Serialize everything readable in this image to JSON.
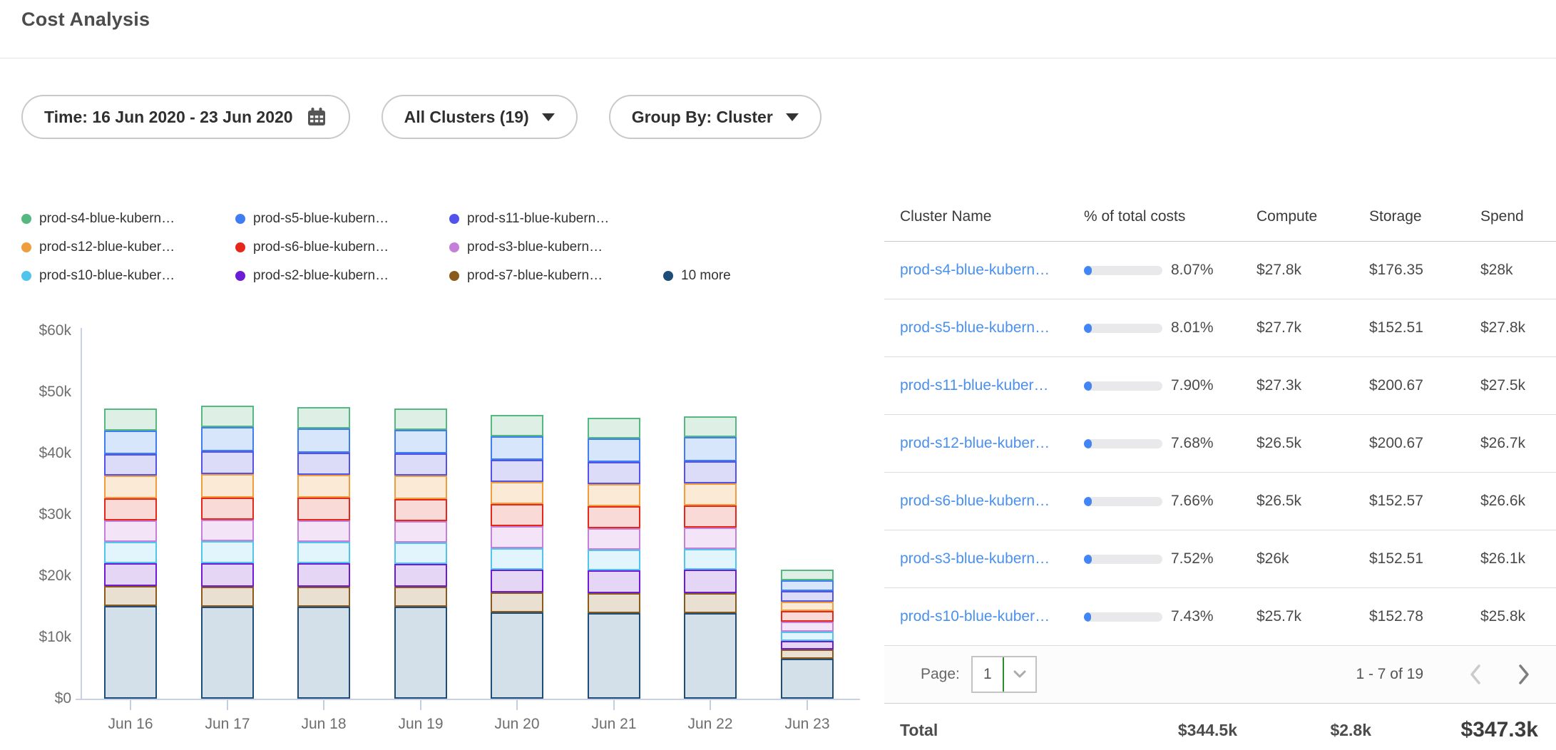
{
  "page": {
    "title": "Cost Analysis"
  },
  "filters": {
    "time": {
      "label": "Time: 16 Jun 2020 - 23 Jun 2020"
    },
    "clusters": {
      "label": "All Clusters (19)"
    },
    "group_by": {
      "label": "Group By: Cluster"
    }
  },
  "legend": {
    "items": [
      {
        "label": "prod-s4-blue-kubern…",
        "color": "#54b880"
      },
      {
        "label": "prod-s5-blue-kubern…",
        "color": "#3e7ef2"
      },
      {
        "label": "prod-s11-blue-kubern…",
        "color": "#5353ec"
      },
      {
        "label": "prod-s12-blue-kuber…",
        "color": "#f09d3e"
      },
      {
        "label": "prod-s6-blue-kubern…",
        "color": "#e6281c"
      },
      {
        "label": "prod-s3-blue-kubern…",
        "color": "#c480d8"
      },
      {
        "label": "prod-s10-blue-kuber…",
        "color": "#50c4ec"
      },
      {
        "label": "prod-s2-blue-kubern…",
        "color": "#6c1cd6"
      },
      {
        "label": "prod-s7-blue-kubern…",
        "color": "#8a5a1c"
      },
      {
        "label": "10 more",
        "color": "#1d4d78"
      }
    ]
  },
  "chart_data": {
    "type": "bar",
    "stacked": true,
    "title": "",
    "xlabel": "",
    "ylabel": "",
    "unit": "USD thousands per day",
    "grid": false,
    "legend_position": "top",
    "ylim": [
      0,
      60000
    ],
    "y_ticks": [
      {
        "label": "$60k",
        "value": 60
      },
      {
        "label": "$50k",
        "value": 50
      },
      {
        "label": "$40k",
        "value": 40
      },
      {
        "label": "$30k",
        "value": 30
      },
      {
        "label": "$20k",
        "value": 20
      },
      {
        "label": "$10k",
        "value": 10
      },
      {
        "label": "$0",
        "value": 0
      }
    ],
    "categories": [
      "Jun 16",
      "Jun 17",
      "Jun 18",
      "Jun 19",
      "Jun 20",
      "Jun 21",
      "Jun 22",
      "Jun 23"
    ],
    "series": [
      {
        "name": "prod-s4-blue-kubern…",
        "color": "#54b880",
        "fill": "#def0e6",
        "values": [
          3.6,
          3.5,
          3.5,
          3.5,
          3.5,
          3.4,
          3.4,
          1.7
        ]
      },
      {
        "name": "prod-s5-blue-kubern…",
        "color": "#3e7ef2",
        "fill": "#d8e6fc",
        "values": [
          3.8,
          3.9,
          3.9,
          3.8,
          3.8,
          3.8,
          3.9,
          1.8
        ]
      },
      {
        "name": "prod-s11-blue-kubern…",
        "color": "#5353ec",
        "fill": "#dcdcf9",
        "values": [
          3.5,
          3.7,
          3.6,
          3.6,
          3.6,
          3.6,
          3.6,
          1.8
        ]
      },
      {
        "name": "prod-s12-blue-kuber…",
        "color": "#f09d3e",
        "fill": "#fbead6",
        "values": [
          3.7,
          3.8,
          3.7,
          3.8,
          3.6,
          3.6,
          3.6,
          1.5
        ]
      },
      {
        "name": "prod-s6-blue-kubern…",
        "color": "#e6281c",
        "fill": "#fadad7",
        "values": [
          3.6,
          3.6,
          3.7,
          3.6,
          3.6,
          3.6,
          3.6,
          1.7
        ]
      },
      {
        "name": "prod-s3-blue-kubern…",
        "color": "#c480d8",
        "fill": "#f4e4f7",
        "values": [
          3.5,
          3.5,
          3.5,
          3.5,
          3.6,
          3.5,
          3.5,
          1.6
        ]
      },
      {
        "name": "prod-s10-blue-kuber…",
        "color": "#50c4ec",
        "fill": "#e2f5fc",
        "values": [
          3.5,
          3.6,
          3.5,
          3.5,
          3.5,
          3.4,
          3.4,
          1.5
        ]
      },
      {
        "name": "prod-s2-blue-kubern…",
        "color": "#6c1cd6",
        "fill": "#e5d6f5",
        "values": [
          3.7,
          3.8,
          3.8,
          3.7,
          3.7,
          3.7,
          3.8,
          1.4
        ]
      },
      {
        "name": "prod-s7-blue-kubern…",
        "color": "#8a5a1c",
        "fill": "#e9e0d1",
        "values": [
          3.3,
          3.3,
          3.2,
          3.2,
          3.3,
          3.3,
          3.2,
          1.5
        ]
      },
      {
        "name": "10 more",
        "color": "#1d4d78",
        "fill": "#d3dfe9",
        "values": [
          15.1,
          15.0,
          15.0,
          15.0,
          14.1,
          14.0,
          14.0,
          6.5
        ]
      }
    ]
  },
  "table": {
    "columns": [
      "Cluster Name",
      "% of total costs",
      "Compute",
      "Storage",
      "Spend"
    ],
    "rows": [
      {
        "name": "prod-s4-blue-kubern…",
        "pct": "8.07%",
        "pct_value": 8.07,
        "compute": "$27.8k",
        "storage": "$176.35",
        "spend": "$28k"
      },
      {
        "name": "prod-s5-blue-kubern…",
        "pct": "8.01%",
        "pct_value": 8.01,
        "compute": "$27.7k",
        "storage": "$152.51",
        "spend": "$27.8k"
      },
      {
        "name": "prod-s11-blue-kuber…",
        "pct": "7.90%",
        "pct_value": 7.9,
        "compute": "$27.3k",
        "storage": "$200.67",
        "spend": "$27.5k"
      },
      {
        "name": "prod-s12-blue-kuber…",
        "pct": "7.68%",
        "pct_value": 7.68,
        "compute": "$26.5k",
        "storage": "$200.67",
        "spend": "$26.7k"
      },
      {
        "name": "prod-s6-blue-kubern…",
        "pct": "7.66%",
        "pct_value": 7.66,
        "compute": "$26.5k",
        "storage": "$152.57",
        "spend": "$26.6k"
      },
      {
        "name": "prod-s3-blue-kubern…",
        "pct": "7.52%",
        "pct_value": 7.52,
        "compute": "$26k",
        "storage": "$152.51",
        "spend": "$26.1k"
      },
      {
        "name": "prod-s10-blue-kuber…",
        "pct": "7.43%",
        "pct_value": 7.43,
        "compute": "$25.7k",
        "storage": "$152.78",
        "spend": "$25.8k"
      }
    ],
    "pagination": {
      "page_label": "Page:",
      "page_value": "1",
      "range": "1 - 7 of 19"
    },
    "total": {
      "label": "Total",
      "compute": "$344.5k",
      "storage": "$2.8k",
      "spend": "$347.3k"
    },
    "accent_bar_color": "#4285f4"
  }
}
